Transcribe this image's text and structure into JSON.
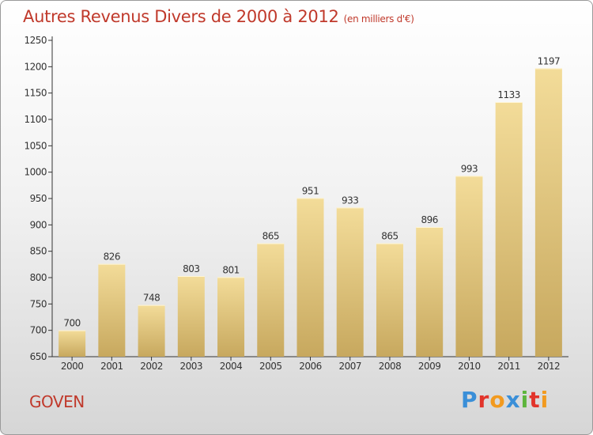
{
  "chart_data": {
    "type": "bar",
    "title": "Autres Revenus Divers de 2000 à 2012",
    "subtitle": "(en milliers d'€)",
    "categories": [
      "2000",
      "2001",
      "2002",
      "2003",
      "2004",
      "2005",
      "2006",
      "2007",
      "2008",
      "2009",
      "2010",
      "2011",
      "2012"
    ],
    "values": [
      700,
      826,
      748,
      803,
      801,
      865,
      951,
      933,
      865,
      896,
      993,
      1133,
      1197
    ],
    "ylim": [
      650,
      1250
    ],
    "yticks": [
      650,
      700,
      750,
      800,
      850,
      900,
      950,
      1000,
      1050,
      1100,
      1150,
      1200,
      1250
    ],
    "grid": false,
    "bar_color": "#e8c978"
  },
  "commune": "GOVEN",
  "brand": {
    "text": "Proxiti",
    "letters": [
      {
        "char": "P",
        "color": "#3a8fd8"
      },
      {
        "char": "r",
        "color": "#e2342b"
      },
      {
        "char": "o",
        "color": "#f29a1f"
      },
      {
        "char": "x",
        "color": "#3a8fd8"
      },
      {
        "char": "i",
        "color": "#5db53c"
      },
      {
        "char": "t",
        "color": "#e2342b"
      },
      {
        "char": "i",
        "color": "#f29a1f"
      }
    ]
  }
}
